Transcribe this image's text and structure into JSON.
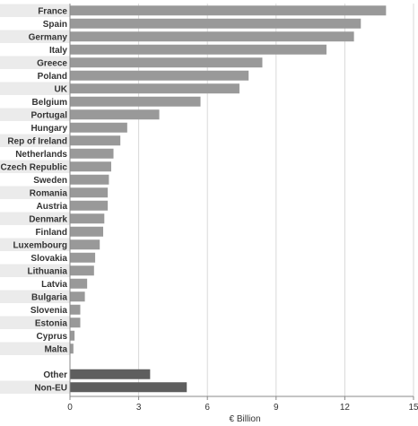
{
  "chart_data": {
    "type": "bar",
    "orientation": "horizontal",
    "title": "",
    "xlabel": "€ Billion",
    "ylabel": "",
    "xlim": [
      0,
      15
    ],
    "xticks": [
      "0",
      "3",
      "6",
      "9",
      "12",
      "15"
    ],
    "grid": true,
    "legend": "none",
    "categories": [
      "France",
      "Spain",
      "Germany",
      "Italy",
      "Greece",
      "Poland",
      "UK",
      "Belgium",
      "Portugal",
      "Hungary",
      "Rep of Ireland",
      "Netherlands",
      "Czech Republic",
      "Sweden",
      "Romania",
      "Austria",
      "Denmark",
      "Finland",
      "Luxembourg",
      "Slovakia",
      "Lithuania",
      "Latvia",
      "Bulgaria",
      "Slovenia",
      "Estonia",
      "Cyprus",
      "Malta",
      "Other",
      "Non-EU"
    ],
    "values": [
      13.8,
      12.7,
      12.4,
      11.2,
      8.4,
      7.8,
      7.4,
      5.7,
      3.9,
      2.5,
      2.2,
      1.9,
      1.8,
      1.7,
      1.65,
      1.65,
      1.5,
      1.45,
      1.3,
      1.1,
      1.05,
      0.75,
      0.65,
      0.45,
      0.45,
      0.2,
      0.15,
      3.5,
      5.1
    ],
    "colors": {
      "bar": "#999999",
      "bar_highlight": "#5e5e5e",
      "band": "#ebebeb",
      "grid": "#d9d9d9",
      "axis": "#888888"
    }
  }
}
